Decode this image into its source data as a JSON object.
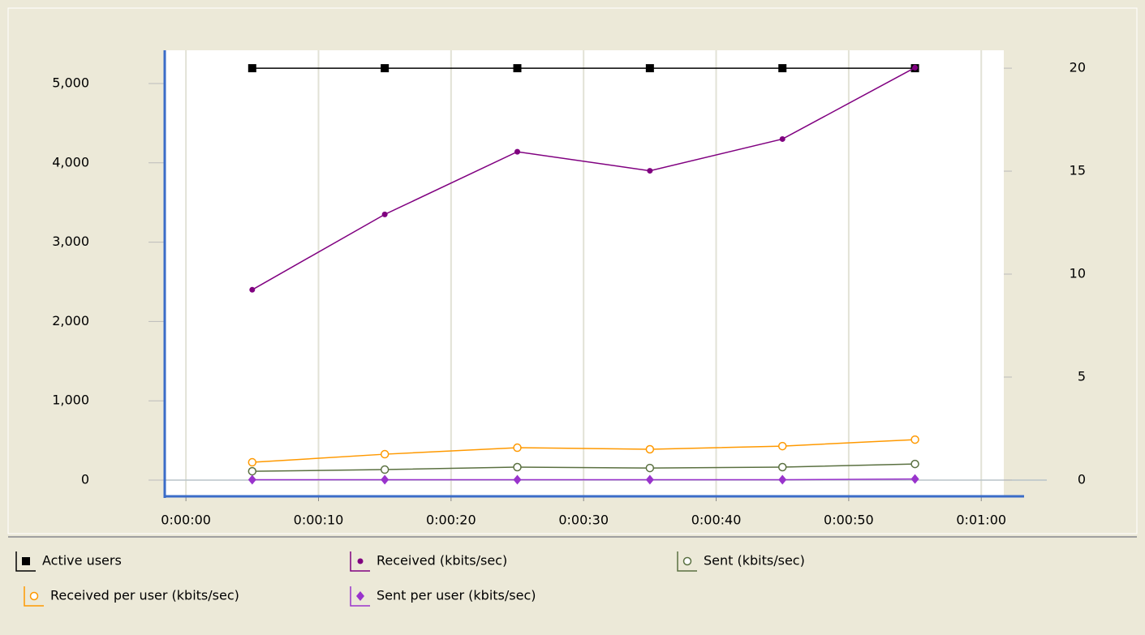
{
  "chart_data": {
    "type": "line",
    "x": [
      5,
      15,
      25,
      35,
      45,
      55
    ],
    "xlim": [
      -1.6,
      61.7
    ],
    "xticks": [
      {
        "value": 0,
        "label": "0:00:00"
      },
      {
        "value": 10,
        "label": "0:00:10"
      },
      {
        "value": 20,
        "label": "0:00:20"
      },
      {
        "value": 30,
        "label": "0:00:30"
      },
      {
        "value": 40,
        "label": "0:00:40"
      },
      {
        "value": 50,
        "label": "0:00:50"
      },
      {
        "value": 60,
        "label": "0:01:00"
      }
    ],
    "ylim": [
      -204,
      5419
    ],
    "yticks": [
      0,
      {
        "value": 1000,
        "label": "1,000"
      },
      {
        "value": 2000,
        "label": "2,000"
      },
      {
        "value": 3000,
        "label": "3,000"
      },
      {
        "value": 4000,
        "label": "4,000"
      },
      {
        "value": 5000,
        "label": "5,000"
      }
    ],
    "y2lim": [
      -0.79,
      20.87
    ],
    "y2ticks": [
      0,
      5,
      10,
      15,
      20
    ],
    "grid": "x",
    "legend": "bottom",
    "series": [
      {
        "name": "Active users",
        "color": "#000000",
        "marker": "square",
        "axis": "y2",
        "values": [
          20,
          20,
          20,
          20,
          20,
          20
        ]
      },
      {
        "name": "Received (kbits/sec)",
        "color": "#800080",
        "marker": "circle",
        "values": [
          2400,
          3350,
          4140,
          3900,
          4300,
          5200
        ]
      },
      {
        "name": "Sent (kbits/sec)",
        "color": "#5a7040",
        "marker": "open-circle",
        "values": [
          112,
          133,
          164,
          153,
          164,
          204
        ]
      },
      {
        "name": "Received per user (kbits/sec)",
        "color": "#ff9900",
        "marker": "open-circle",
        "values": [
          225,
          327,
          409,
          389,
          429,
          511
        ]
      },
      {
        "name": "Sent per user (kbits/sec)",
        "color": "#9933cc",
        "marker": "diamond",
        "values": [
          5,
          5,
          5,
          5,
          5,
          15
        ]
      }
    ]
  }
}
